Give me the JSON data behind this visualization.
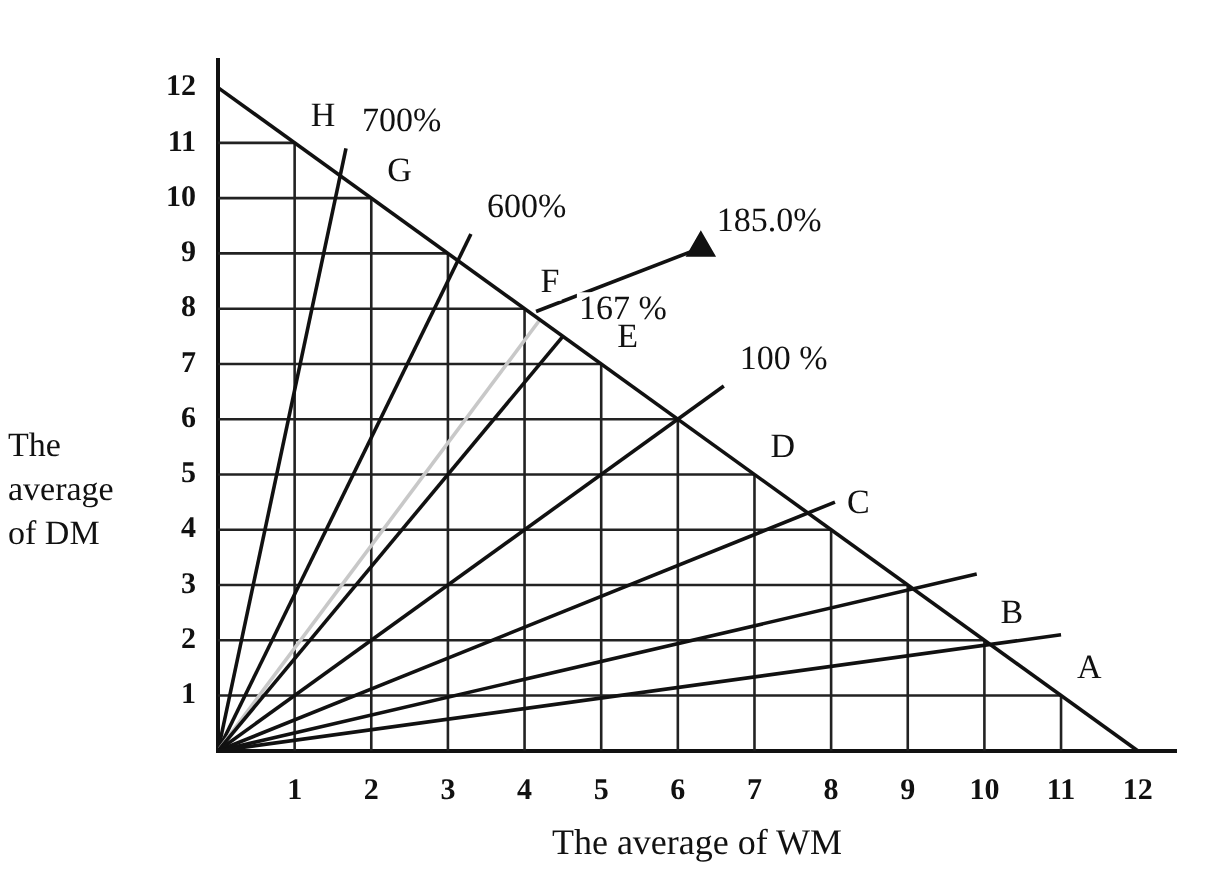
{
  "chart_data": {
    "type": "line",
    "xlabel": "The average of WM",
    "ylabel": "The average of DM",
    "xlim": [
      0,
      12.5
    ],
    "ylim": [
      0,
      12.5
    ],
    "xticks": [
      1,
      2,
      3,
      4,
      5,
      6,
      7,
      8,
      9,
      10,
      11,
      12
    ],
    "yticks": [
      1,
      2,
      3,
      4,
      5,
      6,
      7,
      8,
      9,
      10,
      11,
      12
    ],
    "grid": true,
    "legend": false,
    "line_style": "solid",
    "marker": "none",
    "series": [
      {
        "color": "#111111",
        "x": [
          0,
          12
        ],
        "values": [
          12,
          0
        ]
      },
      {
        "color": "#111111",
        "x": [
          0,
          11
        ],
        "values": [
          0,
          2.1
        ]
      },
      {
        "color": "#111111",
        "x": [
          0,
          9.9
        ],
        "values": [
          0,
          3.2
        ]
      },
      {
        "color": "#111111",
        "x": [
          0,
          8.05
        ],
        "values": [
          0,
          4.5
        ]
      },
      {
        "color": "#111111",
        "x": [
          0,
          6.6
        ],
        "values": [
          0,
          6.6
        ]
      },
      {
        "color": "#111111",
        "x": [
          0,
          4.5
        ],
        "values": [
          0,
          7.5
        ]
      },
      {
        "color": "#c8c8c8",
        "x": [
          0,
          4.2
        ],
        "values": [
          0,
          7.8
        ]
      },
      {
        "color": "#111111",
        "x": [
          0,
          3.3
        ],
        "values": [
          0,
          9.35
        ]
      },
      {
        "color": "#111111",
        "x": [
          0,
          1.67
        ],
        "values": [
          0,
          10.9
        ]
      },
      {
        "color": "#111111",
        "x": [
          4.15,
          6.3
        ],
        "values": [
          7.95,
          9.1
        ],
        "marker": "triangle"
      }
    ],
    "annotations": [
      {
        "text": "H",
        "x": 1,
        "y": 11
      },
      {
        "text": "700%",
        "x": 1.67,
        "y": 10.9
      },
      {
        "text": "G",
        "x": 2,
        "y": 10
      },
      {
        "text": "600%",
        "x": 3.3,
        "y": 9.35
      },
      {
        "text": "185.0%",
        "x": 6.3,
        "y": 9.1
      },
      {
        "text": "F",
        "x": 4,
        "y": 8
      },
      {
        "text": "167 %",
        "x": 4.5,
        "y": 7.5
      },
      {
        "text": "E",
        "x": 5,
        "y": 7
      },
      {
        "text": "100 %",
        "x": 6.6,
        "y": 6.6
      },
      {
        "text": "D",
        "x": 7,
        "y": 5
      },
      {
        "text": "C",
        "x": 8,
        "y": 4
      },
      {
        "text": "B",
        "x": 10,
        "y": 2
      },
      {
        "text": "A",
        "x": 11,
        "y": 1
      }
    ]
  }
}
